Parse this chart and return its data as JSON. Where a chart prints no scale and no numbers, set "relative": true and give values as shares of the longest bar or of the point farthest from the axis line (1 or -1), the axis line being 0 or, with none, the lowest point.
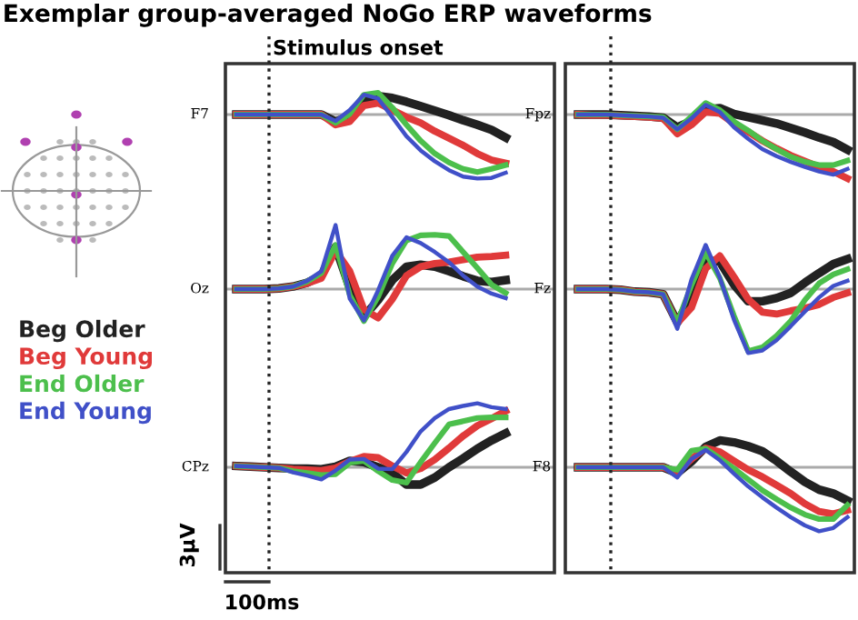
{
  "chart_data": [
    {
      "type": "line",
      "title": "Exemplar group-averaged NoGo ERP waveforms",
      "ylabel": "F7",
      "relative": true,
      "annotations": [
        "Stimulus onset"
      ],
      "categories": [
        null,
        null,
        null,
        null,
        null,
        null,
        null,
        null,
        null,
        null,
        null,
        null,
        null,
        null,
        null,
        null,
        null,
        null,
        null,
        null
      ],
      "series": [
        {
          "name": "Beg Older",
          "color": "#222222",
          "values": [
            0,
            0,
            0,
            0,
            0,
            0,
            0,
            -0.11,
            -0.03,
            0.19,
            0.29,
            0.26,
            0.2,
            0.13,
            0.06,
            -0.01,
            -0.09,
            -0.16,
            -0.24,
            -0.36
          ]
        },
        {
          "name": "Beg Young",
          "color": "#e03a3a",
          "values": [
            0,
            0,
            0,
            0,
            0,
            0,
            0,
            -0.16,
            -0.11,
            0.14,
            0.18,
            0.07,
            -0.04,
            -0.13,
            -0.26,
            -0.37,
            -0.48,
            -0.61,
            -0.71,
            -0.76
          ]
        },
        {
          "name": "End Older",
          "color": "#4cbf4c",
          "values": [
            0,
            0,
            0,
            0,
            0,
            0,
            0,
            -0.13,
            0.01,
            0.31,
            0.34,
            0.11,
            -0.16,
            -0.41,
            -0.61,
            -0.75,
            -0.85,
            -0.9,
            -0.85,
            -0.79
          ]
        },
        {
          "name": "End Young",
          "color": "#4050c8",
          "values": [
            0,
            0,
            0,
            0,
            0,
            0,
            0,
            -0.1,
            0.07,
            0.31,
            0.25,
            -0.04,
            -0.34,
            -0.56,
            -0.73,
            -0.87,
            -0.97,
            -1,
            -0.99,
            -0.91
          ]
        }
      ]
    },
    {
      "type": "line",
      "ylabel": "Fpz",
      "relative": true,
      "categories": [
        null,
        null,
        null,
        null,
        null,
        null,
        null,
        null,
        null,
        null,
        null,
        null,
        null,
        null,
        null,
        null,
        null,
        null,
        null,
        null
      ],
      "series": [
        {
          "color": "#222222",
          "values": [
            0,
            0,
            0,
            -0.01,
            -0.02,
            -0.03,
            -0.05,
            -0.2,
            -0.1,
            0.08,
            0.1,
            0.01,
            -0.04,
            -0.09,
            -0.14,
            -0.21,
            -0.28,
            -0.36,
            -0.43,
            -0.55
          ]
        },
        {
          "color": "#e03a3a",
          "values": [
            0,
            -0.01,
            -0.01,
            -0.02,
            -0.03,
            -0.04,
            -0.06,
            -0.3,
            -0.16,
            0.04,
            0.02,
            -0.14,
            -0.27,
            -0.41,
            -0.53,
            -0.64,
            -0.73,
            -0.82,
            -0.89,
            -1
          ]
        },
        {
          "color": "#4cbf4c",
          "values": [
            0,
            0,
            0,
            -0.01,
            -0.02,
            -0.03,
            -0.04,
            -0.23,
            -0.03,
            0.18,
            0.07,
            -0.11,
            -0.25,
            -0.41,
            -0.54,
            -0.66,
            -0.74,
            -0.79,
            -0.79,
            -0.72
          ]
        },
        {
          "color": "#4050c8",
          "values": [
            0,
            0,
            0,
            -0.01,
            -0.02,
            -0.03,
            -0.05,
            -0.23,
            -0.06,
            0.15,
            0.04,
            -0.2,
            -0.38,
            -0.54,
            -0.65,
            -0.74,
            -0.82,
            -0.89,
            -0.94,
            -0.85
          ]
        }
      ]
    },
    {
      "type": "line",
      "ylabel": "Oz",
      "relative": true,
      "categories": [
        null,
        null,
        null,
        null,
        null,
        null,
        null,
        null,
        null,
        null,
        null,
        null,
        null,
        null,
        null,
        null,
        null,
        null,
        null,
        null
      ],
      "series": [
        {
          "color": "#222222",
          "values": [
            0,
            0,
            0,
            0.01,
            0.04,
            0.1,
            0.21,
            0.66,
            0.02,
            -0.43,
            -0.17,
            0.14,
            0.35,
            0.38,
            0.35,
            0.28,
            0.2,
            0.13,
            0.11,
            0.14
          ]
        },
        {
          "color": "#e03a3a",
          "values": [
            0,
            0,
            0,
            0.01,
            0.04,
            0.09,
            0.17,
            0.6,
            0.28,
            -0.32,
            -0.45,
            -0.16,
            0.21,
            0.35,
            0.4,
            0.42,
            0.46,
            0.5,
            0.51,
            0.53
          ]
        },
        {
          "color": "#4cbf4c",
          "values": [
            0,
            0,
            0,
            0.01,
            0.04,
            0.12,
            0.25,
            0.69,
            -0.09,
            -0.5,
            -0.12,
            0.4,
            0.76,
            0.84,
            0.85,
            0.83,
            0.58,
            0.33,
            0.07,
            -0.06
          ]
        },
        {
          "color": "#4050c8",
          "values": [
            0,
            0,
            0,
            0.01,
            0.04,
            0.13,
            0.28,
            1,
            -0.15,
            -0.49,
            -0.02,
            0.52,
            0.81,
            0.72,
            0.58,
            0.42,
            0.21,
            0.04,
            -0.07,
            -0.14
          ]
        }
      ]
    },
    {
      "type": "line",
      "ylabel": "Fz",
      "relative": true,
      "categories": [
        null,
        null,
        null,
        null,
        null,
        null,
        null,
        null,
        null,
        null,
        null,
        null,
        null,
        null,
        null,
        null,
        null,
        null,
        null,
        null
      ],
      "series": [
        {
          "color": "#222222",
          "values": [
            0,
            0,
            0,
            -0.01,
            -0.04,
            -0.05,
            -0.08,
            -0.52,
            -0.13,
            0.45,
            0.43,
            0.07,
            -0.19,
            -0.19,
            -0.14,
            -0.06,
            0.1,
            0.25,
            0.39,
            0.47
          ]
        },
        {
          "color": "#e03a3a",
          "values": [
            0,
            0,
            0,
            -0.01,
            -0.04,
            -0.05,
            -0.08,
            -0.53,
            -0.29,
            0.32,
            0.52,
            0.19,
            -0.16,
            -0.36,
            -0.39,
            -0.34,
            -0.3,
            -0.24,
            -0.13,
            -0.06
          ]
        },
        {
          "color": "#4cbf4c",
          "values": [
            0,
            0,
            0,
            -0.01,
            -0.04,
            -0.05,
            -0.08,
            -0.52,
            0.06,
            0.57,
            0.17,
            -0.42,
            -0.97,
            -0.91,
            -0.73,
            -0.5,
            -0.17,
            0.09,
            0.23,
            0.31
          ]
        },
        {
          "color": "#4050c8",
          "values": [
            0,
            0,
            0,
            -0.01,
            -0.04,
            -0.05,
            -0.08,
            -0.62,
            0.15,
            0.69,
            0.18,
            -0.48,
            -1,
            -0.96,
            -0.8,
            -0.58,
            -0.35,
            -0.13,
            0.05,
            0.13
          ]
        }
      ]
    },
    {
      "type": "line",
      "ylabel": "CPz",
      "relative": true,
      "annotations": [
        "3µV",
        "100ms"
      ],
      "categories": [
        null,
        null,
        null,
        null,
        null,
        null,
        null,
        null,
        null,
        null,
        null,
        null,
        null,
        null,
        null,
        null,
        null,
        null,
        null,
        null
      ],
      "series": [
        {
          "color": "#222222",
          "values": [
            0.02,
            0.01,
            0,
            -0.01,
            -0.02,
            -0.02,
            -0.03,
            0.01,
            0.1,
            0.08,
            0,
            -0.09,
            -0.27,
            -0.27,
            -0.16,
            0,
            0.14,
            0.29,
            0.42,
            0.53
          ]
        },
        {
          "color": "#e03a3a",
          "values": [
            0.02,
            0.01,
            0,
            -0.01,
            -0.03,
            -0.04,
            -0.05,
            -0.01,
            0.09,
            0.17,
            0.15,
            0.02,
            -0.09,
            -0.02,
            0.12,
            0.3,
            0.49,
            0.65,
            0.76,
            0.88
          ]
        },
        {
          "color": "#4cbf4c",
          "values": [
            0.02,
            0.01,
            0,
            -0.01,
            -0.06,
            -0.09,
            -0.12,
            -0.11,
            0.07,
            0.1,
            -0.06,
            -0.2,
            -0.24,
            0.08,
            0.38,
            0.67,
            0.72,
            0.77,
            0.78,
            0.78
          ]
        },
        {
          "color": "#4050c8",
          "values": [
            0.02,
            0.01,
            0,
            -0.01,
            -0.08,
            -0.13,
            -0.19,
            -0.05,
            0.12,
            0.13,
            -0.02,
            -0.03,
            0.24,
            0.56,
            0.77,
            0.91,
            0.96,
            1,
            0.94,
            0.91
          ]
        }
      ]
    },
    {
      "type": "line",
      "ylabel": "F8",
      "relative": true,
      "categories": [
        null,
        null,
        null,
        null,
        null,
        null,
        null,
        null,
        null,
        null,
        null,
        null,
        null,
        null,
        null,
        null,
        null,
        null,
        null,
        null
      ],
      "series": [
        {
          "color": "#222222",
          "values": [
            0,
            0,
            0,
            0,
            0,
            0,
            0,
            -0.09,
            0.09,
            0.32,
            0.42,
            0.39,
            0.33,
            0.25,
            0.1,
            -0.07,
            -0.23,
            -0.35,
            -0.41,
            -0.52
          ]
        },
        {
          "color": "#e03a3a",
          "values": [
            0,
            0,
            0,
            0,
            0,
            0,
            0,
            -0.08,
            0.13,
            0.3,
            0.24,
            0.1,
            -0.04,
            -0.15,
            -0.28,
            -0.41,
            -0.57,
            -0.69,
            -0.73,
            -0.67
          ]
        },
        {
          "color": "#4cbf4c",
          "values": [
            0,
            0,
            0,
            0,
            0,
            0,
            0,
            -0.04,
            0.26,
            0.29,
            0.14,
            -0.02,
            -0.19,
            -0.36,
            -0.5,
            -0.63,
            -0.74,
            -0.81,
            -0.81,
            -0.59
          ]
        },
        {
          "color": "#4050c8",
          "values": [
            0,
            0,
            0,
            0,
            0,
            0,
            0,
            -0.16,
            0.13,
            0.27,
            0.11,
            -0.1,
            -0.3,
            -0.47,
            -0.63,
            -0.78,
            -0.91,
            -1,
            -0.95,
            -0.78
          ]
        }
      ]
    }
  ]
}
